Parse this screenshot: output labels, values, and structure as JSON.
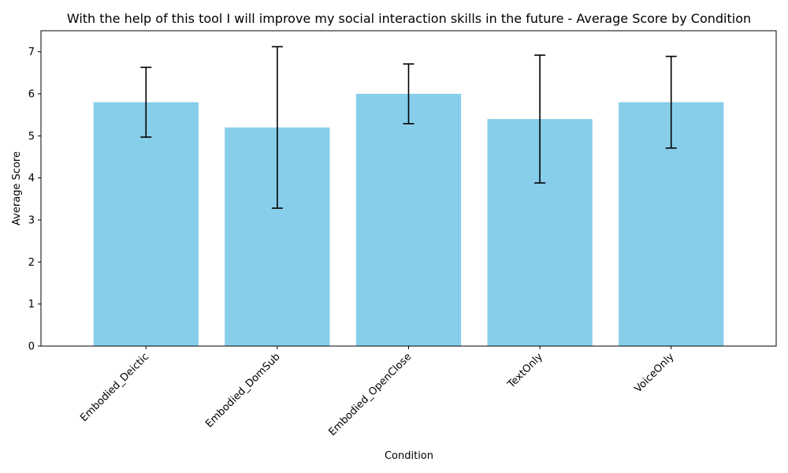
{
  "chart_data": {
    "type": "bar",
    "title": "With the help of this tool I will improve my social interaction skills in the future - Average Score by Condition",
    "xlabel": "Condition",
    "ylabel": "Average Score",
    "categories": [
      "Embodied_Deictic",
      "Embodied_DomSub",
      "Embodied_OpenClose",
      "TextOnly",
      "VoiceOnly"
    ],
    "values": [
      5.8,
      5.2,
      6.0,
      5.4,
      5.8
    ],
    "errors": [
      0.83,
      1.92,
      0.71,
      1.52,
      1.09
    ],
    "ylim": [
      0,
      7.5
    ],
    "yticks": [
      "0",
      "1",
      "2",
      "3",
      "4",
      "5",
      "6",
      "7"
    ],
    "bar_color": "#87ceeb",
    "error_color": "#000000",
    "grid": false,
    "legend": "none",
    "x_tick_rotation_deg": 45
  }
}
